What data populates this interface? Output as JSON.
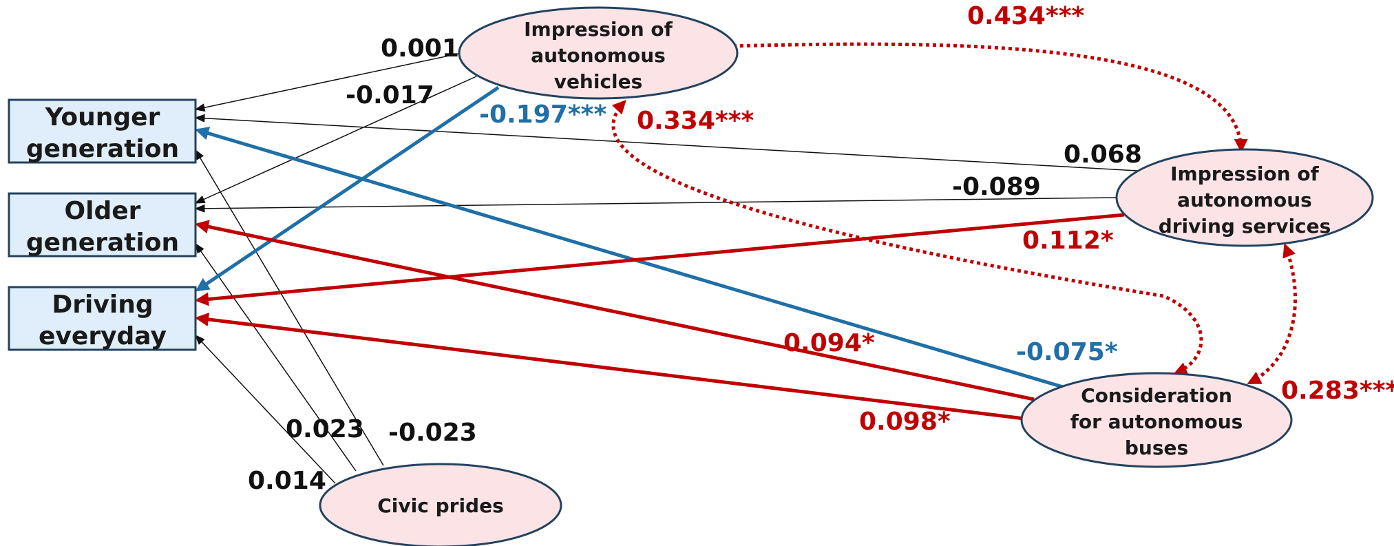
{
  "colors": {
    "positive_significant": "#c00000",
    "negative_significant": "#1f6fa8",
    "non_significant": "#111111",
    "rect_fill": "#dfeefa",
    "rect_stroke": "#23425e",
    "ellipse_fill": "#fbe3e6",
    "ellipse_stroke": "#23425e"
  },
  "nodes": {
    "younger": {
      "lines": [
        "Younger",
        "generation"
      ]
    },
    "older": {
      "lines": [
        "Older",
        "generation"
      ]
    },
    "driving": {
      "lines": [
        "Driving",
        "everyday"
      ]
    },
    "impression_av": {
      "lines": [
        "Impression of",
        "autonomous",
        "vehicles"
      ]
    },
    "impression_ads": {
      "lines": [
        "Impression of",
        "autonomous",
        "driving services"
      ]
    },
    "consideration_buses": {
      "lines": [
        "Consideration",
        "for autonomous",
        "buses"
      ]
    },
    "civic_prides": {
      "lines": [
        "Civic prides"
      ]
    }
  },
  "paths": [
    {
      "from": "impression_av",
      "to": "younger",
      "coef": "0.001",
      "significance": "ns"
    },
    {
      "from": "impression_av",
      "to": "older",
      "coef": "-0.017",
      "significance": "ns"
    },
    {
      "from": "impression_av",
      "to": "driving",
      "coef": "-0.197***",
      "significance": "negative"
    },
    {
      "from": "impression_ads",
      "to": "younger",
      "coef": "0.068",
      "significance": "ns"
    },
    {
      "from": "impression_ads",
      "to": "older",
      "coef": "-0.089",
      "significance": "ns"
    },
    {
      "from": "impression_ads",
      "to": "driving",
      "coef": "0.112*",
      "significance": "positive"
    },
    {
      "from": "consideration_buses",
      "to": "younger",
      "coef": "-0.075*",
      "significance": "negative"
    },
    {
      "from": "consideration_buses",
      "to": "older",
      "coef": "0.094*",
      "significance": "positive"
    },
    {
      "from": "consideration_buses",
      "to": "driving",
      "coef": "0.098*",
      "significance": "positive"
    },
    {
      "from": "civic_prides",
      "to": "younger",
      "coef": "-0.023",
      "significance": "ns"
    },
    {
      "from": "civic_prides",
      "to": "older",
      "coef": "0.023",
      "significance": "ns"
    },
    {
      "from": "civic_prides",
      "to": "driving",
      "coef": "0.014",
      "significance": "ns"
    }
  ],
  "correlations": [
    {
      "between": [
        "impression_av",
        "impression_ads"
      ],
      "coef": "0.434***"
    },
    {
      "between": [
        "impression_av",
        "consideration_buses"
      ],
      "coef": "0.334***"
    },
    {
      "between": [
        "impression_ads",
        "consideration_buses"
      ],
      "coef": "0.283***"
    }
  ]
}
